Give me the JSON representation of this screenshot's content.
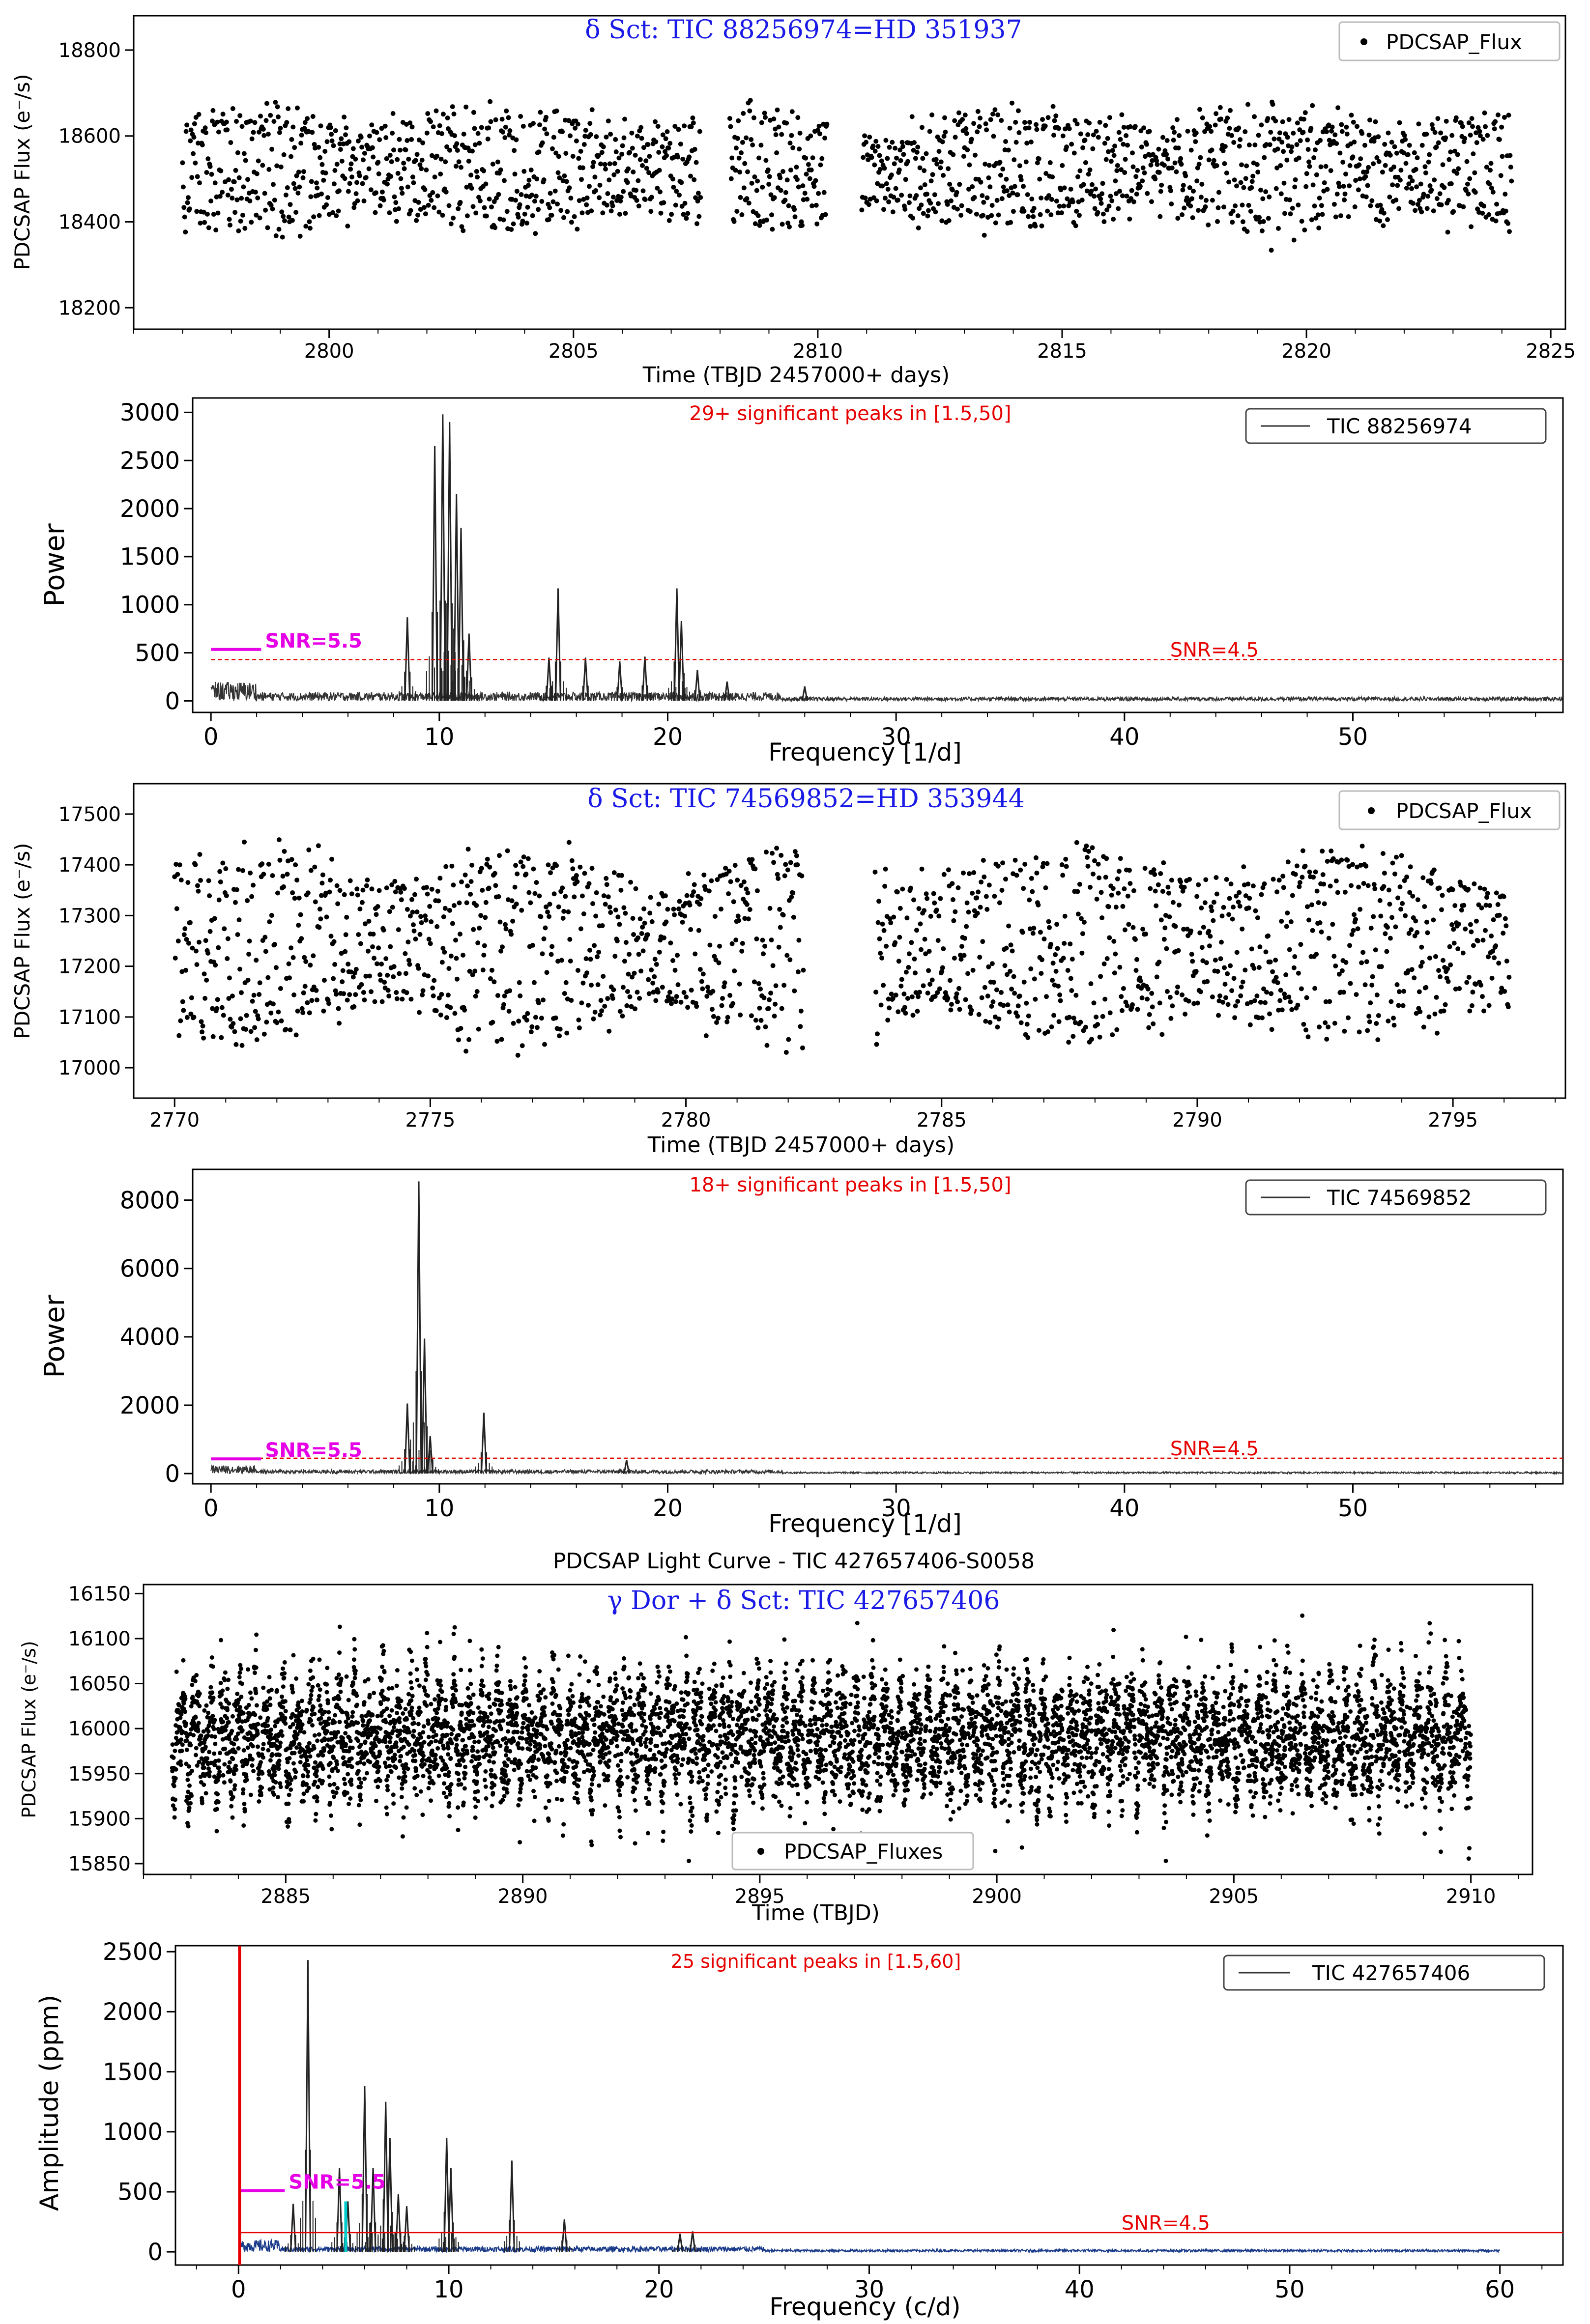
{
  "chart_data": [
    {
      "type": "scatter",
      "title": "δ Sct: TIC 88256974=HD 351937",
      "xlabel": "Time (TBJD 2457000+ days)",
      "ylabel": "PDCSAP Flux (e⁻/s)",
      "xlim": [
        2796.0,
        2825.3
      ],
      "ylim": [
        18150,
        18880
      ],
      "xticks": [
        "2800",
        "2805",
        "2810",
        "2815",
        "2820",
        "2825"
      ],
      "yticks": [
        "18200",
        "18400",
        "18600",
        "18800"
      ],
      "legend": [
        {
          "label": "PDCSAP_Flux"
        }
      ],
      "legend_position": "top-right",
      "gap": [
        2810.2,
        2810.9
      ],
      "segments": [
        [
          2797.0,
          2807.6
        ],
        [
          2808.2,
          2810.2
        ],
        [
          2810.9,
          2824.2
        ]
      ],
      "baseline": 18520,
      "spread": 140
    },
    {
      "type": "line",
      "title": "",
      "annotation": "29+ significant peaks in [1.5,50]",
      "xlabel": "Frequency [1/d]",
      "ylabel": "Power",
      "xlim": [
        -0.8,
        59.2
      ],
      "ylim": [
        -120,
        3150
      ],
      "xticks": [
        "0",
        "10",
        "20",
        "30",
        "40",
        "50"
      ],
      "yticks": [
        "0",
        "500",
        "1000",
        "1500",
        "2000",
        "2500",
        "3000"
      ],
      "legend": [
        {
          "label": "TIC 88256974"
        }
      ],
      "legend_position": "top-right",
      "snr_high": {
        "label": "SNR=5.5",
        "y": 535,
        "x": [
          0,
          2.2
        ]
      },
      "snr_low": {
        "label": "SNR=4.5",
        "y": 430
      },
      "peaks": [
        [
          8.6,
          870
        ],
        [
          9.8,
          2650
        ],
        [
          10.15,
          2980
        ],
        [
          10.45,
          2900
        ],
        [
          10.75,
          2150
        ],
        [
          10.95,
          1800
        ],
        [
          11.3,
          700
        ],
        [
          15.2,
          1170
        ],
        [
          14.8,
          450
        ],
        [
          16.4,
          450
        ],
        [
          17.9,
          410
        ],
        [
          19.0,
          460
        ],
        [
          20.4,
          1170
        ],
        [
          20.6,
          830
        ],
        [
          21.3,
          320
        ],
        [
          22.6,
          200
        ],
        [
          26.0,
          150
        ]
      ]
    },
    {
      "type": "scatter",
      "title": "δ Sct: TIC 74569852=HD 353944",
      "xlabel": "Time (TBJD 2457000+ days)",
      "ylabel": "PDCSAP Flux (e⁻/s)",
      "xlim": [
        2769.2,
        2797.2
      ],
      "ylim": [
        16940,
        17560
      ],
      "xticks": [
        "2770",
        "2775",
        "2780",
        "2785",
        "2790",
        "2795"
      ],
      "yticks": [
        "17000",
        "17100",
        "17200",
        "17300",
        "17400",
        "17500"
      ],
      "legend": [
        {
          "label": "PDCSAP_Flux"
        }
      ],
      "legend_position": "top-right",
      "gap": [
        2782.3,
        2783.7
      ],
      "segments": [
        [
          2770.0,
          2782.3
        ],
        [
          2783.7,
          2796.1
        ]
      ],
      "baseline": 17240,
      "spread": 190
    },
    {
      "type": "line",
      "title": "",
      "annotation": "18+ significant peaks in [1.5,50]",
      "xlabel": "Frequency [1/d]",
      "ylabel": "Power",
      "xlim": [
        -0.8,
        59.2
      ],
      "ylim": [
        -300,
        8900
      ],
      "xticks": [
        "0",
        "10",
        "20",
        "30",
        "40",
        "50"
      ],
      "yticks": [
        "0",
        "2000",
        "4000",
        "6000",
        "8000"
      ],
      "legend": [
        {
          "label": "TIC 74569852"
        }
      ],
      "legend_position": "top-right",
      "snr_high": {
        "label": "SNR=5.5",
        "y": 430,
        "x": [
          0,
          2.2
        ]
      },
      "snr_low": {
        "label": "SNR=4.5",
        "y": 450
      },
      "peaks": [
        [
          8.6,
          2050
        ],
        [
          9.1,
          8550
        ],
        [
          9.35,
          3950
        ],
        [
          9.6,
          1100
        ],
        [
          11.95,
          1780
        ],
        [
          18.2,
          400
        ]
      ]
    },
    {
      "type": "scatter",
      "figure_title": "PDCSAP Light Curve - TIC 427657406-S0058",
      "title": "γ Dor + δ Sct: TIC 427657406",
      "xlabel": "Time (TBJD)",
      "ylabel": "PDCSAP Flux (e⁻/s)",
      "xlim": [
        2882.0,
        2911.3
      ],
      "ylim": [
        15838,
        16160
      ],
      "xticks": [
        "2885",
        "2890",
        "2895",
        "2900",
        "2905",
        "2910"
      ],
      "yticks": [
        "15850",
        "15900",
        "15950",
        "16000",
        "16050",
        "16100",
        "16150"
      ],
      "legend": [
        {
          "label": "PDCSAP_Fluxes"
        }
      ],
      "legend_position": "bottom-center",
      "gap": [
        2896.6,
        2896.7
      ],
      "segments": [
        [
          2882.6,
          2910.0
        ]
      ],
      "baseline": 15990,
      "spread": 70
    },
    {
      "type": "line",
      "title": "",
      "annotation": "25 significant peaks in [1.5,60]",
      "xlabel": "Frequency (c/d)",
      "ylabel": "Amplitude (ppm)",
      "xlim": [
        -3.0,
        63.0
      ],
      "ylim": [
        -110,
        2550
      ],
      "xticks": [
        "0",
        "10",
        "20",
        "30",
        "40",
        "50",
        "60"
      ],
      "yticks": [
        "0",
        "500",
        "1000",
        "1500",
        "2000",
        "2500"
      ],
      "legend": [
        {
          "label": "TIC 427657406"
        }
      ],
      "legend_position": "top-right",
      "snr_high": {
        "label": "SNR=5.5",
        "y": 510,
        "x": [
          0,
          2.2
        ]
      },
      "snr_low": {
        "label": "SNR=4.5",
        "y": 160
      },
      "cyan_line_x": 5.1,
      "red_line_x": 0.05,
      "peaks": [
        [
          3.3,
          2430
        ],
        [
          2.6,
          400
        ],
        [
          4.8,
          700
        ],
        [
          5.2,
          420
        ],
        [
          6.0,
          1380
        ],
        [
          6.4,
          700
        ],
        [
          7.0,
          1250
        ],
        [
          7.2,
          950
        ],
        [
          7.6,
          480
        ],
        [
          8.0,
          380
        ],
        [
          9.9,
          950
        ],
        [
          10.1,
          700
        ],
        [
          13.0,
          760
        ],
        [
          15.5,
          270
        ],
        [
          21.0,
          150
        ],
        [
          21.6,
          170
        ]
      ]
    }
  ]
}
